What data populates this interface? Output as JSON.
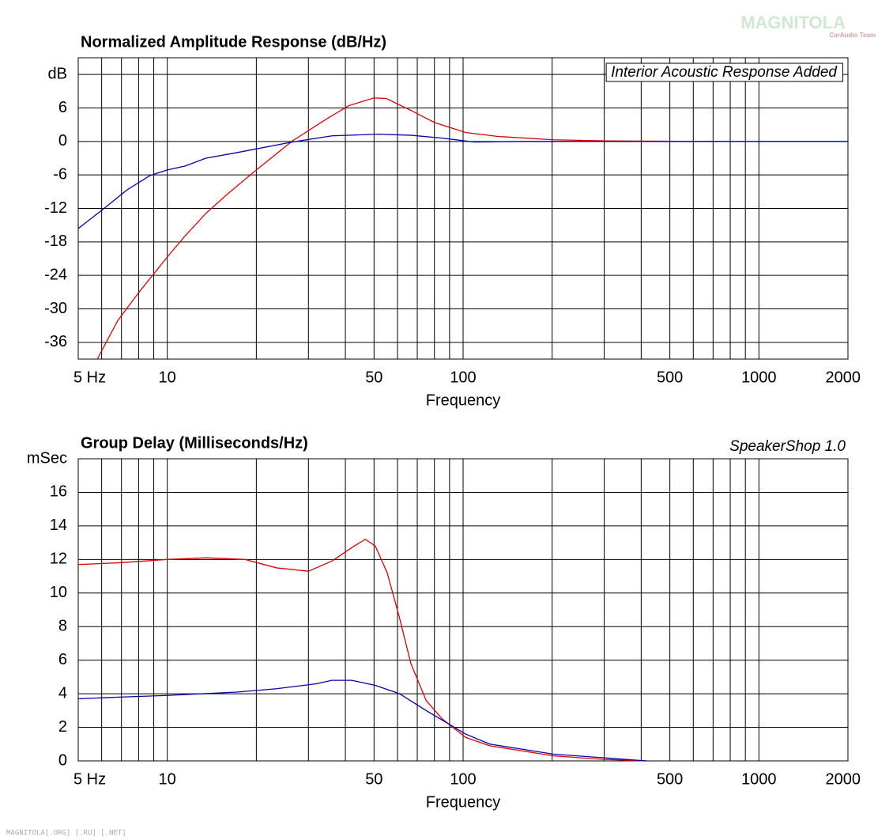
{
  "watermark": {
    "logo": "MAGNITOLA",
    "tagline": "CarAudio Team"
  },
  "footer": "MAGNITOLA[.ORG] [.RU] [.NET]",
  "chart_data": [
    {
      "type": "line",
      "title": "Normalized Amplitude Response (dB/Hz)",
      "x_label": "Frequency",
      "annotation": "Interior Acoustic Response Added",
      "annotation_boxed": true,
      "log_x": true,
      "grid": true,
      "xlim": [
        5,
        2000
      ],
      "xticks": [
        {
          "value": 5,
          "label": "5  Hz"
        },
        10,
        50,
        100,
        500,
        1000,
        2000
      ],
      "xgrid": [
        5,
        6,
        7,
        8,
        9,
        10,
        20,
        30,
        40,
        50,
        60,
        70,
        80,
        90,
        100,
        200,
        300,
        400,
        500,
        600,
        700,
        800,
        900,
        1000,
        2000
      ],
      "ylim": [
        -39,
        15
      ],
      "yticks": [
        {
          "value": 12,
          "label": "dB"
        },
        6,
        0,
        -6,
        -12,
        -18,
        -24,
        -30,
        -36
      ],
      "series": [
        {
          "color": "#e00000",
          "x": [
            5.8,
            6.8,
            8,
            9.3,
            10,
            11.5,
            13.5,
            16,
            20,
            26.5,
            34,
            41,
            50,
            55,
            67,
            80,
            102,
            131,
            202,
            310,
            734
          ],
          "values": [
            -39,
            -32.1,
            -27.1,
            -22.8,
            -20.7,
            -16.9,
            -12.9,
            -9.4,
            -5.1,
            0.1,
            3.8,
            6.4,
            7.8,
            7.7,
            5.5,
            3.4,
            1.6,
            0.9,
            0.3,
            0.1,
            0
          ]
        },
        {
          "color": "#0000b0",
          "x": [
            5,
            6.05,
            7.3,
            8.75,
            10,
            11.5,
            13.5,
            17.2,
            26.5,
            36,
            52,
            67,
            85,
            109,
            158,
            2000
          ],
          "values": [
            -15.6,
            -12.2,
            -8.7,
            -6.1,
            -5.1,
            -4.4,
            -3,
            -2,
            -0.1,
            1,
            1.3,
            1.1,
            0.6,
            -0.1,
            0,
            0
          ]
        }
      ]
    },
    {
      "type": "line",
      "title": "Group Delay (Milliseconds/Hz)",
      "x_label": "Frequency",
      "annotation": "SpeakerShop 1.0",
      "annotation_boxed": false,
      "log_x": true,
      "grid": true,
      "xlim": [
        5,
        2000
      ],
      "xticks": [
        {
          "value": 5,
          "label": "5  Hz"
        },
        10,
        50,
        100,
        500,
        1000,
        2000
      ],
      "xgrid": [
        5,
        6,
        7,
        8,
        9,
        10,
        20,
        30,
        40,
        50,
        60,
        70,
        80,
        90,
        100,
        200,
        300,
        400,
        500,
        600,
        700,
        800,
        900,
        1000,
        2000
      ],
      "ylim": [
        0,
        18
      ],
      "yticks": [
        {
          "value": 18,
          "label": "mSec"
        },
        16,
        14,
        12,
        10,
        8,
        6,
        4,
        2,
        0
      ],
      "series": [
        {
          "color": "#e00000",
          "x": [
            5,
            6.84,
            10,
            13.5,
            18.3,
            23.4,
            30,
            36,
            42,
            46.7,
            50.5,
            55.4,
            60.8,
            66.6,
            75,
            85,
            102,
            123,
            158,
            202,
            292,
            417
          ],
          "values": [
            11.7,
            11.8,
            12,
            12.1,
            12,
            11.5,
            11.3,
            11.9,
            12.7,
            13.2,
            12.8,
            11.2,
            8.6,
            5.8,
            3.6,
            2.5,
            1.4,
            0.9,
            0.6,
            0.3,
            0.1,
            0
          ]
        },
        {
          "color": "#0000b0",
          "x": [
            5,
            6.84,
            10,
            17.2,
            23.4,
            32,
            36,
            42,
            50.5,
            61,
            75,
            102,
            123,
            158,
            202,
            292,
            417
          ],
          "values": [
            3.7,
            3.8,
            3.9,
            4.1,
            4.3,
            4.6,
            4.8,
            4.8,
            4.5,
            4,
            3,
            1.6,
            1,
            0.7,
            0.4,
            0.2,
            0
          ]
        }
      ]
    }
  ]
}
